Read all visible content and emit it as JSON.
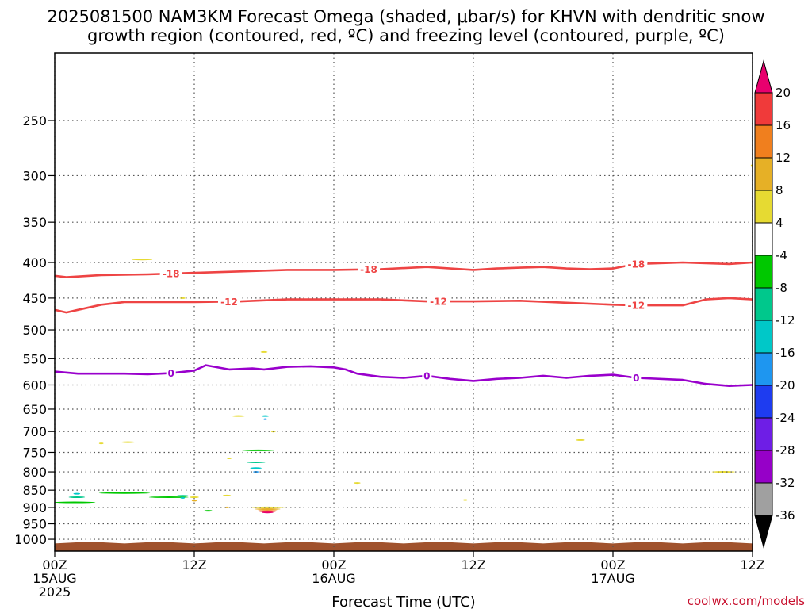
{
  "chart_data": {
    "type": "contour",
    "title_line1": "2025081500 NAM3KM Forecast Omega (shaded, μbar/s) for KHVN with dendritic snow",
    "title_line2": "growth region (contoured, red, ºC) and freezing level (contoured, purple, ºC)",
    "xlabel": "Forecast Time (UTC)",
    "ylabel": "",
    "x_axis": {
      "unit": "hours since 2025081500",
      "range": [
        0,
        60
      ],
      "ticks": [
        {
          "hour": 0,
          "label": "00Z",
          "sub1": "15AUG",
          "sub2": "2025"
        },
        {
          "hour": 12,
          "label": "12Z",
          "sub1": "",
          "sub2": ""
        },
        {
          "hour": 24,
          "label": "00Z",
          "sub1": "16AUG",
          "sub2": ""
        },
        {
          "hour": 36,
          "label": "12Z",
          "sub1": "",
          "sub2": ""
        },
        {
          "hour": 48,
          "label": "00Z",
          "sub1": "17AUG",
          "sub2": ""
        },
        {
          "hour": 60,
          "label": "12Z",
          "sub1": "",
          "sub2": ""
        }
      ]
    },
    "y_axis": {
      "unit": "hPa",
      "scale": "log",
      "range": [
        1040,
        200
      ],
      "ticks": [
        250,
        300,
        350,
        400,
        450,
        500,
        550,
        600,
        650,
        700,
        750,
        800,
        850,
        900,
        950,
        1000
      ]
    },
    "grid": true,
    "colorbar": {
      "unit": "μbar/s",
      "labels": [
        "20",
        "16",
        "12",
        "8",
        "4",
        "-4",
        "-8",
        "-12",
        "-16",
        "-20",
        "-24",
        "-28",
        "-32",
        "-36"
      ],
      "bins": [
        {
          "color": "#e8006e"
        },
        {
          "color": "#f03a3a"
        },
        {
          "color": "#f07f1e"
        },
        {
          "color": "#e6b026"
        },
        {
          "color": "#e6da32"
        },
        {
          "color": "#ffffff"
        },
        {
          "color": "#00c800"
        },
        {
          "color": "#00c88c"
        },
        {
          "color": "#00c8c8"
        },
        {
          "color": "#1e96f0"
        },
        {
          "color": "#1e3cf0"
        },
        {
          "color": "#6e1ee6"
        },
        {
          "color": "#9600c8"
        },
        {
          "color": "#a0a0a0"
        },
        {
          "color": "#000000"
        }
      ]
    },
    "contours": [
      {
        "name": "dgz_-18C",
        "label": "-18",
        "color": "#ee4444",
        "points": [
          [
            0,
            418
          ],
          [
            1,
            420
          ],
          [
            4,
            417
          ],
          [
            8,
            416
          ],
          [
            12,
            414
          ],
          [
            16,
            412
          ],
          [
            20,
            410
          ],
          [
            24,
            410
          ],
          [
            28,
            409
          ],
          [
            32,
            406
          ],
          [
            34,
            408
          ],
          [
            36,
            410
          ],
          [
            38,
            408
          ],
          [
            40,
            407
          ],
          [
            42,
            406
          ],
          [
            44,
            408
          ],
          [
            46,
            409
          ],
          [
            48,
            408
          ],
          [
            50,
            402
          ],
          [
            54,
            400
          ],
          [
            56,
            401
          ],
          [
            58,
            402
          ],
          [
            60,
            400
          ]
        ],
        "label_hours": [
          10,
          27,
          50
        ]
      },
      {
        "name": "dgz_-12C",
        "label": "-12",
        "color": "#ee4444",
        "points": [
          [
            0,
            468
          ],
          [
            1,
            472
          ],
          [
            2,
            468
          ],
          [
            4,
            460
          ],
          [
            6,
            456
          ],
          [
            8,
            456
          ],
          [
            12,
            456
          ],
          [
            16,
            455
          ],
          [
            20,
            452
          ],
          [
            24,
            452
          ],
          [
            28,
            452
          ],
          [
            32,
            455
          ],
          [
            36,
            455
          ],
          [
            40,
            454
          ],
          [
            44,
            457
          ],
          [
            48,
            460
          ],
          [
            50,
            461
          ],
          [
            54,
            461
          ],
          [
            56,
            452
          ],
          [
            58,
            450
          ],
          [
            60,
            452
          ]
        ],
        "label_hours": [
          15,
          33,
          50
        ]
      },
      {
        "name": "freezing_level_0C",
        "label": "0",
        "color": "#9900cc",
        "points": [
          [
            0,
            574
          ],
          [
            2,
            578
          ],
          [
            4,
            578
          ],
          [
            6,
            578
          ],
          [
            8,
            579
          ],
          [
            10,
            577
          ],
          [
            12,
            572
          ],
          [
            13,
            562
          ],
          [
            15,
            570
          ],
          [
            17,
            568
          ],
          [
            18,
            570
          ],
          [
            20,
            565
          ],
          [
            22,
            564
          ],
          [
            24,
            566
          ],
          [
            25,
            570
          ],
          [
            26,
            578
          ],
          [
            28,
            584
          ],
          [
            30,
            586
          ],
          [
            32,
            582
          ],
          [
            34,
            588
          ],
          [
            36,
            592
          ],
          [
            38,
            588
          ],
          [
            40,
            586
          ],
          [
            42,
            582
          ],
          [
            44,
            586
          ],
          [
            46,
            582
          ],
          [
            48,
            580
          ],
          [
            50,
            586
          ],
          [
            54,
            590
          ],
          [
            56,
            598
          ],
          [
            58,
            602
          ],
          [
            60,
            600
          ]
        ],
        "label_hours": [
          10,
          32,
          50
        ]
      }
    ],
    "omega_regions": [
      {
        "bin": 4,
        "center": [
          7.5,
          396
        ],
        "radius": [
          0.9,
          42
        ]
      },
      {
        "bin": 4,
        "center": [
          11.0,
          450
        ],
        "radius": [
          0.25,
          50
        ]
      },
      {
        "bin": 4,
        "center": [
          18.0,
          538
        ],
        "radius": [
          0.3,
          40
        ]
      },
      {
        "bin": 4,
        "center": [
          15.8,
          665
        ],
        "radius": [
          0.6,
          28
        ]
      },
      {
        "bin": 4,
        "center": [
          18.8,
          700
        ],
        "radius": [
          0.2,
          20
        ]
      },
      {
        "bin": 4,
        "center": [
          4.0,
          728
        ],
        "radius": [
          0.2,
          14
        ]
      },
      {
        "bin": 4,
        "center": [
          6.3,
          725
        ],
        "radius": [
          0.6,
          16
        ]
      },
      {
        "bin": 4,
        "center": [
          15.0,
          765
        ],
        "radius": [
          0.2,
          20
        ]
      },
      {
        "bin": 4,
        "center": [
          26.0,
          830
        ],
        "radius": [
          0.3,
          22
        ]
      },
      {
        "bin": 4,
        "center": [
          35.3,
          878
        ],
        "radius": [
          0.2,
          10
        ]
      },
      {
        "bin": 4,
        "center": [
          45.2,
          720
        ],
        "radius": [
          0.4,
          70
        ]
      },
      {
        "bin": 4,
        "center": [
          57.5,
          800
        ],
        "radius": [
          1.0,
          15
        ]
      },
      {
        "bin": 4,
        "center": [
          60.0,
          290
        ],
        "radius": [
          0.15,
          12
        ]
      },
      {
        "bin": 4,
        "center": [
          12.0,
          870
        ],
        "radius": [
          0.4,
          90
        ]
      },
      {
        "bin": 4,
        "center": [
          14.8,
          865
        ],
        "radius": [
          0.35,
          60
        ]
      },
      {
        "bin": 4,
        "center": [
          18.3,
          900
        ],
        "radius": [
          1.5,
          90
        ]
      },
      {
        "bin": 3,
        "center": [
          12.0,
          880
        ],
        "radius": [
          0.22,
          50
        ]
      },
      {
        "bin": 3,
        "center": [
          14.8,
          900
        ],
        "radius": [
          0.2,
          30
        ]
      },
      {
        "bin": 3,
        "center": [
          18.3,
          905
        ],
        "radius": [
          1.1,
          70
        ]
      },
      {
        "bin": 2,
        "center": [
          18.3,
          910
        ],
        "radius": [
          0.85,
          58
        ]
      },
      {
        "bin": 1,
        "center": [
          18.3,
          912
        ],
        "radius": [
          0.7,
          48
        ]
      },
      {
        "bin": 0,
        "center": [
          18.3,
          915
        ],
        "radius": [
          0.5,
          38
        ]
      },
      {
        "bin": 6,
        "center": [
          1.7,
          885
        ],
        "radius": [
          1.8,
          95
        ]
      },
      {
        "bin": 7,
        "center": [
          1.9,
          870
        ],
        "radius": [
          0.7,
          45
        ]
      },
      {
        "bin": 8,
        "center": [
          1.9,
          860
        ],
        "radius": [
          0.3,
          22
        ]
      },
      {
        "bin": 6,
        "center": [
          6.0,
          858
        ],
        "radius": [
          2.2,
          38
        ]
      },
      {
        "bin": 6,
        "center": [
          9.8,
          870
        ],
        "radius": [
          1.7,
          45
        ]
      },
      {
        "bin": 7,
        "center": [
          11.0,
          866
        ],
        "radius": [
          0.5,
          30
        ]
      },
      {
        "bin": 8,
        "center": [
          11.0,
          872
        ],
        "radius": [
          0.2,
          14
        ]
      },
      {
        "bin": 6,
        "center": [
          13.2,
          910
        ],
        "radius": [
          0.35,
          70
        ]
      },
      {
        "bin": 6,
        "center": [
          17.5,
          745
        ],
        "radius": [
          1.4,
          110
        ]
      },
      {
        "bin": 7,
        "center": [
          17.3,
          775
        ],
        "radius": [
          0.8,
          65
        ]
      },
      {
        "bin": 8,
        "center": [
          17.3,
          790
        ],
        "radius": [
          0.5,
          35
        ]
      },
      {
        "bin": 9,
        "center": [
          17.3,
          800
        ],
        "radius": [
          0.25,
          20
        ]
      },
      {
        "bin": 8,
        "center": [
          18.1,
          665
        ],
        "radius": [
          0.35,
          32
        ]
      },
      {
        "bin": 9,
        "center": [
          18.1,
          672
        ],
        "radius": [
          0.15,
          15
        ]
      }
    ],
    "terrain": {
      "color": "#a0522d",
      "top_hpa": 1010
    }
  },
  "credit": "coolwx.com/models"
}
